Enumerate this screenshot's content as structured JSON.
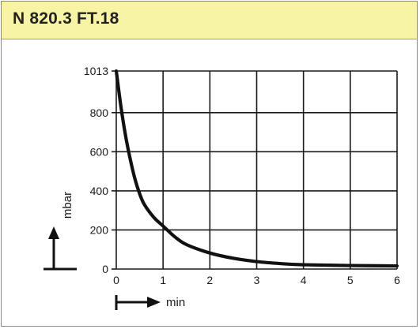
{
  "title": "N 820.3 FT.18",
  "colors": {
    "title_background": "#f7f4a6",
    "grid": "#1a1a1a",
    "curve": "#111111"
  },
  "chart_data": {
    "type": "line",
    "xlabel": "min",
    "ylabel": "mbar",
    "xlim": [
      0,
      6
    ],
    "ylim": [
      0,
      1013
    ],
    "x_ticks": [
      0,
      1,
      2,
      3,
      4,
      5,
      6
    ],
    "y_ticks": [
      0,
      200,
      400,
      600,
      800,
      1013
    ],
    "x_tick_labels": [
      "0",
      "1",
      "2",
      "3",
      "4",
      "5",
      "6"
    ],
    "y_tick_labels": [
      "0",
      "200",
      "400",
      "600",
      "800",
      "1013"
    ],
    "grid": true,
    "series": [
      {
        "x": [
          0,
          0.1,
          0.2,
          0.3,
          0.4,
          0.5,
          0.6,
          0.8,
          1.0,
          1.25,
          1.5,
          2.0,
          2.5,
          3.0,
          3.5,
          4.0,
          5.0,
          6.0
        ],
        "y": [
          1013,
          830,
          680,
          560,
          460,
          385,
          330,
          265,
          220,
          165,
          125,
          82,
          55,
          38,
          28,
          22,
          18,
          16
        ]
      }
    ]
  }
}
